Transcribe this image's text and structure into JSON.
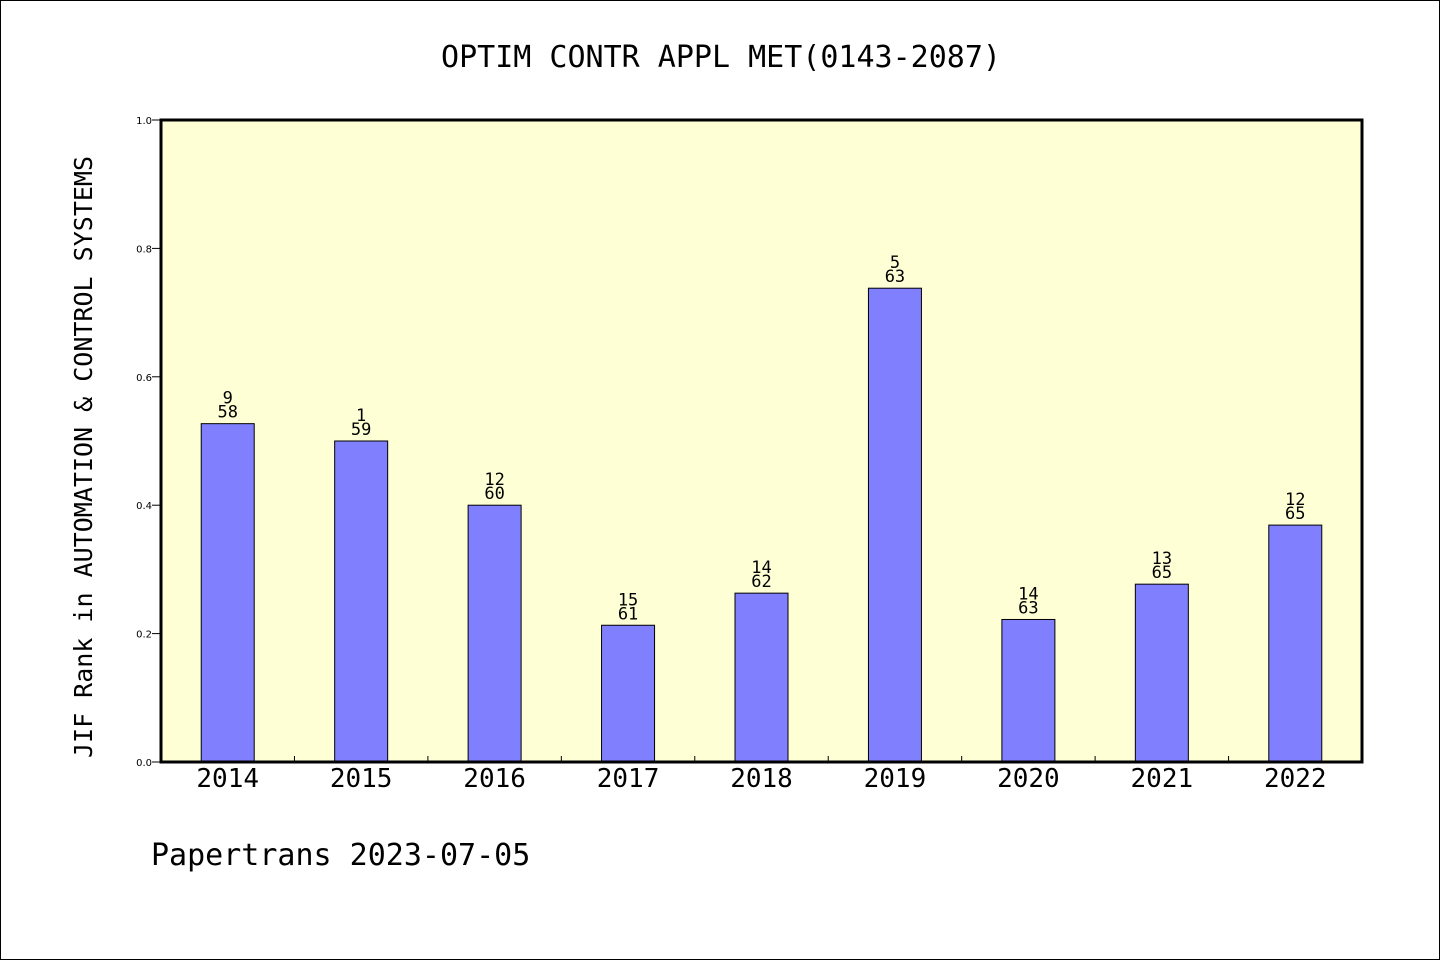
{
  "chart_data": {
    "type": "bar",
    "title": "OPTIM CONTR APPL MET(0143-2087)",
    "ylabel": "JIF Rank in AUTOMATION & CONTROL SYSTEMS",
    "xlabel": "",
    "footer": "Papertrans 2023-07-05",
    "ylim": [
      0,
      1.0
    ],
    "yticks": [
      "0.0",
      "0.2",
      "0.4",
      "0.6",
      "0.8",
      "1.0"
    ],
    "categories": [
      "2014",
      "2015",
      "2016",
      "2017",
      "2018",
      "2019",
      "2020",
      "2021",
      "2022"
    ],
    "values": [
      0.527,
      0.5,
      0.4,
      0.213,
      0.263,
      0.738,
      0.222,
      0.277,
      0.369
    ],
    "ranks": [
      "9",
      "1",
      "12",
      "15",
      "14",
      "5",
      "14",
      "13",
      "12"
    ],
    "totals": [
      "58",
      "59",
      "60",
      "61",
      "62",
      "63",
      "63",
      "65",
      "65"
    ],
    "colors": {
      "plot_bg": "#ffffd5",
      "bar": "#8080ff",
      "axis": "#000000"
    },
    "grid": false,
    "legend": "none"
  }
}
